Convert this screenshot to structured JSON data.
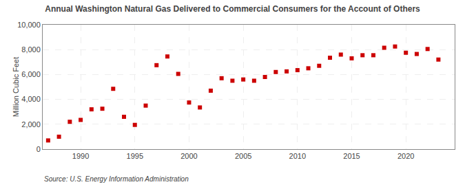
{
  "chart_data": {
    "type": "scatter",
    "title": "Annual Washington Natural Gas Delivered to Commercial Consumers for the Account of Others",
    "ylabel": "Million Cubic Feet",
    "annotations": [
      "Source: U.S. Energy Information Administration"
    ],
    "x": [
      1987,
      1988,
      1989,
      1990,
      1991,
      1992,
      1993,
      1994,
      1995,
      1996,
      1997,
      1998,
      1999,
      2000,
      2001,
      2002,
      2003,
      2004,
      2005,
      2006,
      2007,
      2008,
      2009,
      2010,
      2011,
      2012,
      2013,
      2014,
      2015,
      2016,
      2017,
      2018,
      2019,
      2020,
      2021,
      2022,
      2023
    ],
    "values": [
      700,
      1000,
      2200,
      2350,
      3200,
      3250,
      4850,
      2600,
      1950,
      3500,
      6750,
      7450,
      6050,
      3750,
      3350,
      4700,
      5700,
      5500,
      5600,
      5500,
      5800,
      6200,
      6250,
      6350,
      6500,
      6700,
      7350,
      7600,
      7300,
      7550,
      7550,
      8150,
      8250,
      7750,
      7650,
      8050,
      7200
    ],
    "color": "#cc0000",
    "marker": "square",
    "xlim": [
      1986.5,
      2024.5
    ],
    "xticks": [
      1990,
      1995,
      2000,
      2005,
      2010,
      2015,
      2020
    ],
    "ylim": [
      0,
      10000
    ],
    "yticks": [
      0,
      {
        "value": 2000,
        "label": "2,000"
      },
      {
        "value": 4000,
        "label": "4,000"
      },
      {
        "value": 6000,
        "label": "6,000"
      },
      {
        "value": 8000,
        "label": "8,000"
      },
      {
        "value": 10000,
        "label": "10,000"
      }
    ],
    "grid": true
  }
}
